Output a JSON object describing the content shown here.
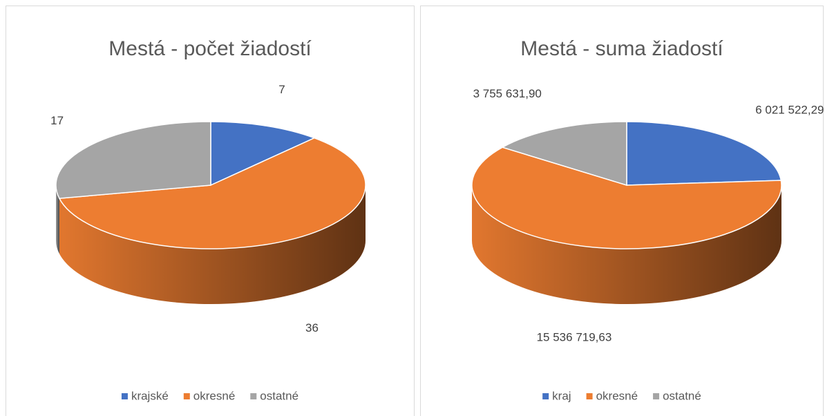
{
  "chart_data": [
    {
      "type": "pie",
      "title": "Mestá - počet žiadostí",
      "categories": [
        "krajské",
        "okresné",
        "ostatné"
      ],
      "values": [
        7,
        36,
        17
      ],
      "colors": [
        "#4472c4",
        "#ed7d31",
        "#a5a5a5"
      ],
      "legend": "bottom"
    },
    {
      "type": "pie",
      "title": "Mestá - suma žiadostí",
      "categories": [
        "kraj",
        "okresné",
        "ostatné"
      ],
      "values": [
        6021522.29,
        15536719.63,
        3755631.9
      ],
      "value_labels": [
        "6 021 522,29",
        "15 536 719,63",
        "3 755 631,90"
      ],
      "colors": [
        "#4472c4",
        "#ed7d31",
        "#a5a5a5"
      ],
      "legend": "bottom"
    }
  ]
}
